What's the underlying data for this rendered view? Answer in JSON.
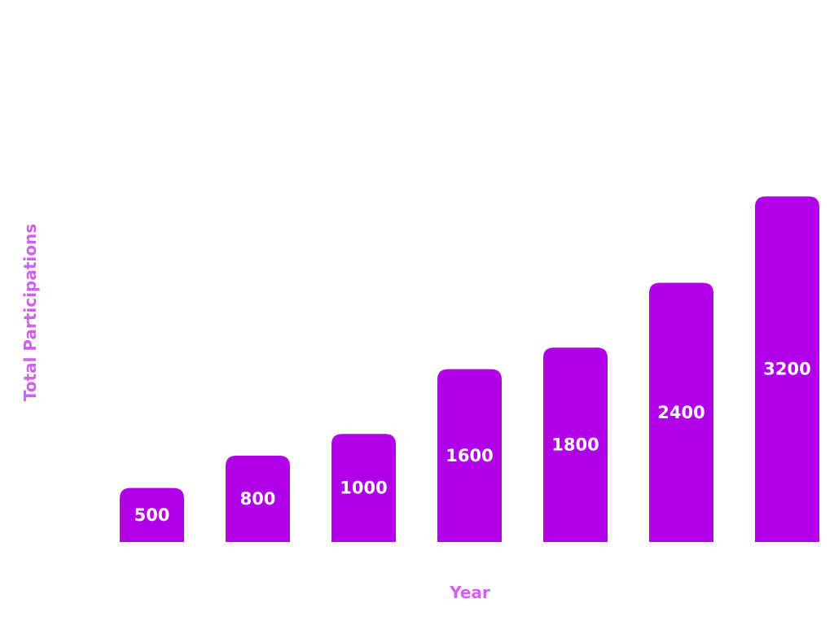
{
  "chart_data": {
    "type": "bar",
    "values": [
      500,
      800,
      1000,
      1600,
      1800,
      2400,
      3200
    ],
    "xlabel": "Year",
    "ylabel": "Total Participations",
    "data_labels": true,
    "grid": false,
    "legend": "none"
  },
  "colors": {
    "bar": "#b000e8",
    "axis_label": "#d25ff0",
    "data_label": "#ffffff",
    "background": "#ffffff"
  }
}
